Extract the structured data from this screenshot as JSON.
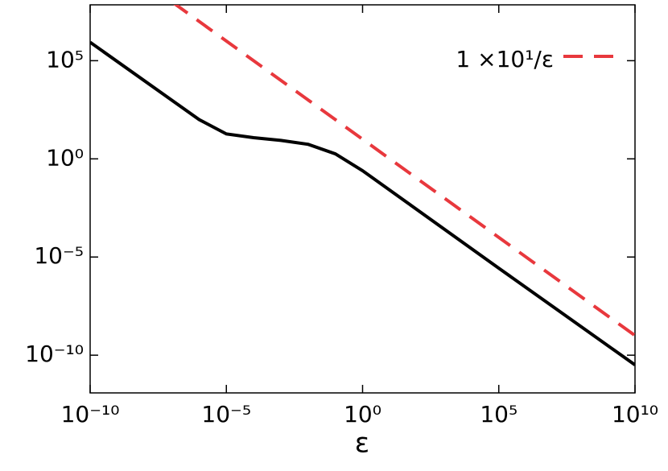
{
  "chart_data": {
    "type": "line",
    "xlabel": "ε",
    "xscale": "log",
    "yscale": "log",
    "xlim": [
      1e-10,
      10000000000.0
    ],
    "ylim": [
      1.2e-12,
      70000000.0
    ],
    "xticks": [
      {
        "value": 1e-10,
        "label": "10⁻¹⁰"
      },
      {
        "value": 1e-05,
        "label": "10⁻⁵"
      },
      {
        "value": 1,
        "label": "10⁰"
      },
      {
        "value": 100000.0,
        "label": "10⁵"
      },
      {
        "value": 10000000000.0,
        "label": "10¹⁰"
      }
    ],
    "yticks": [
      {
        "value": 1e-10,
        "label": "10⁻¹⁰"
      },
      {
        "value": 1e-05,
        "label": "10⁻⁵"
      },
      {
        "value": 1,
        "label": "10⁰"
      },
      {
        "value": 100000.0,
        "label": "10⁵"
      }
    ],
    "legend": "upper right",
    "series": [
      {
        "color": "#000000",
        "dash": false,
        "x": [
          1e-10,
          1e-06,
          1e-05,
          0.0001,
          0.001,
          0.01,
          0.1,
          1,
          100000.0,
          10000000000.0
        ],
        "values": [
          870000,
          100,
          18.6,
          12,
          8.7,
          5.5,
          1.8,
          0.25,
          2.7e-06,
          3.2e-11
        ]
      },
      {
        "name": "1 ×10¹/ε",
        "color": "#e8383d",
        "dash": true,
        "x": [
          1e-07,
          10000000000.0
        ],
        "values": [
          100000000.0,
          1e-09
        ]
      }
    ]
  }
}
